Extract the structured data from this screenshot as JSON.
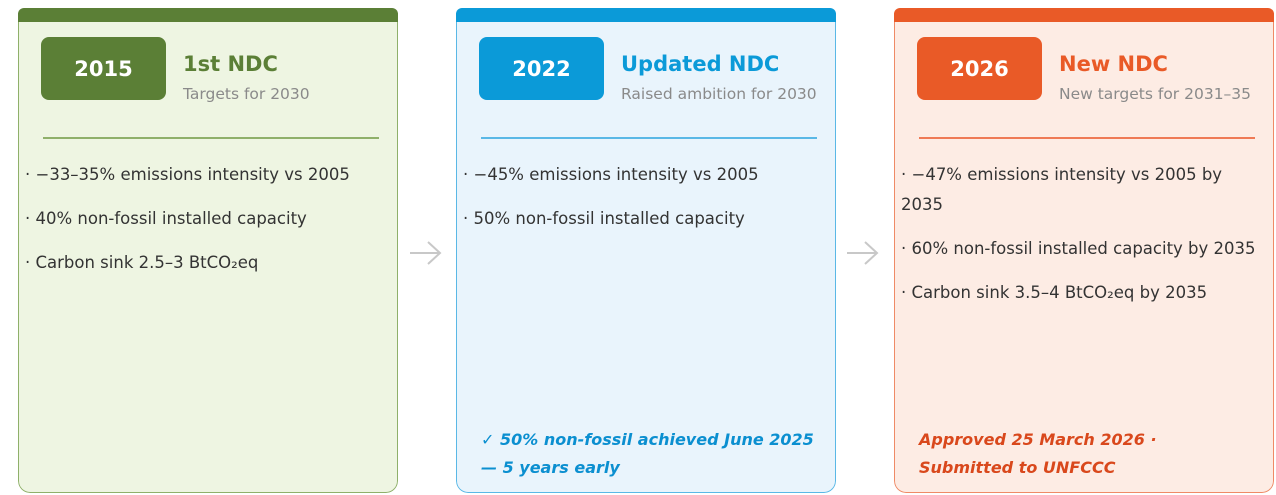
{
  "cards": [
    {
      "year": "2015",
      "title": "1st NDC",
      "subtitle": "Targets for 2030",
      "bullets": [
        "· −33–35% emissions intensity vs 2005",
        "· 40% non-fossil installed capacity",
        "· Carbon sink 2.5–3 BtCO₂eq"
      ]
    },
    {
      "year": "2022",
      "title": "Updated NDC",
      "subtitle": "Raised ambition for 2030",
      "bullets": [
        "· −45% emissions intensity vs 2005",
        "· 50% non-fossil installed capacity"
      ],
      "note": "✓ 50% non-fossil achieved June 2025 — 5 years early"
    },
    {
      "year": "2026",
      "title": "New NDC",
      "subtitle": "New targets for 2031–35",
      "bullets": [
        "· −47% emissions intensity vs 2005 by 2035",
        "· 60% non-fossil installed capacity by 2035",
        "· Carbon sink 3.5–4 BtCO₂eq by 2035"
      ],
      "note": "Approved 25 March 2026 · Submitted to UNFCCC"
    }
  ]
}
